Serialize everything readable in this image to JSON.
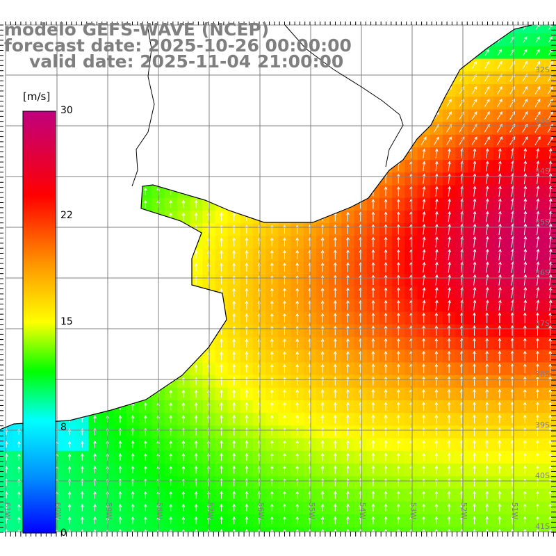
{
  "header": {
    "model": "modelo GEFS-WAVE (NCEP)",
    "forecast": "forecast date: 2025-10-26 00:00:00",
    "valid": "valid date: 2025-11-04 21:00:00"
  },
  "colorbar": {
    "unit": "[m/s]",
    "ticks": [
      "30",
      "22",
      "15",
      "8",
      "0"
    ],
    "stops": [
      {
        "v": 0,
        "c": "#0000ff"
      },
      {
        "v": 4,
        "c": "#0090ff"
      },
      {
        "v": 8,
        "c": "#00ffff"
      },
      {
        "v": 11.5,
        "c": "#00ff00"
      },
      {
        "v": 15,
        "c": "#ffff00"
      },
      {
        "v": 19,
        "c": "#ff9900"
      },
      {
        "v": 24,
        "c": "#ff0000"
      },
      {
        "v": 30,
        "c": "#c0007f"
      }
    ]
  },
  "axes": {
    "lon_labels": [
      "61W",
      "60W",
      "59W",
      "58W",
      "57W",
      "56W",
      "55W",
      "54W",
      "53W",
      "52W",
      "51W"
    ],
    "lat_labels": [
      "32S",
      "33S",
      "34S",
      "35S",
      "36S",
      "37S",
      "38S",
      "39S",
      "40S",
      "41S"
    ]
  },
  "colors": {
    "grid": "#808080",
    "coast": "#000000",
    "arrow": "#ffffff",
    "land": "#ffffff"
  }
}
